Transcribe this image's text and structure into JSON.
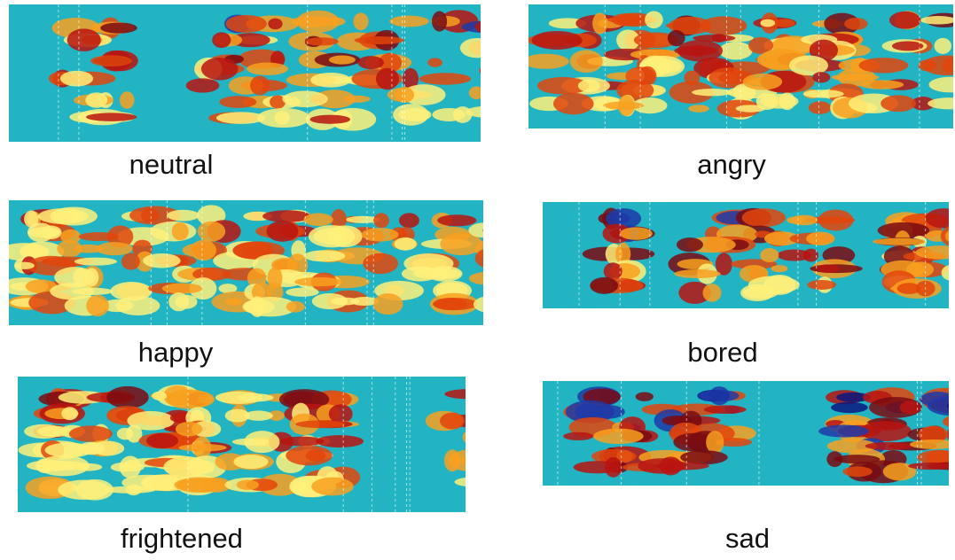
{
  "panels": [
    {
      "label": "neutral"
    },
    {
      "label": "angry"
    },
    {
      "label": "happy"
    },
    {
      "label": "bored"
    },
    {
      "label": "frightened"
    },
    {
      "label": "sad"
    }
  ]
}
